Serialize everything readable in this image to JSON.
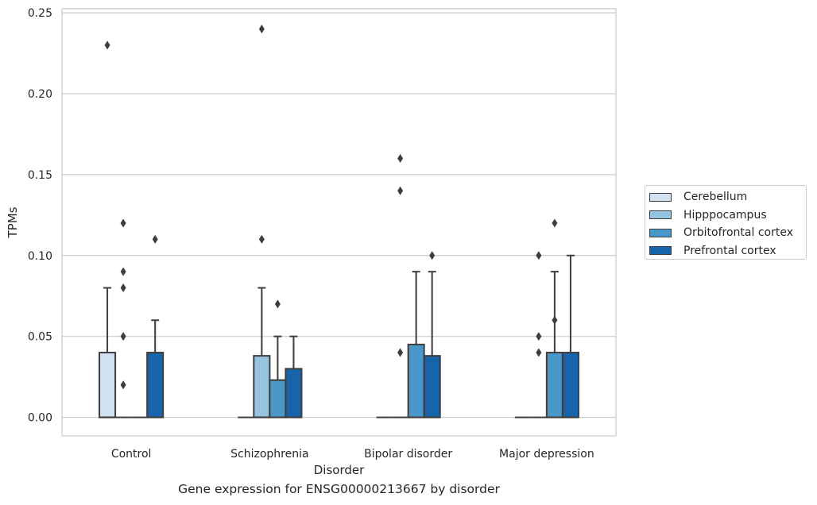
{
  "chart_data": {
    "type": "box",
    "xlabel": "Disorder",
    "ylabel": "TPMs",
    "caption": "Gene expression for ENSG00000213667 by disorder",
    "categories": [
      "Control",
      "Schizophrenia",
      "Bipolar disorder",
      "Major depression"
    ],
    "ylim": [
      -0.0115,
      0.2525
    ],
    "yticks": [
      0.0,
      0.05,
      0.1,
      0.15,
      0.2,
      0.25
    ],
    "ytick_labels": [
      "0.00",
      "0.05",
      "0.10",
      "0.15",
      "0.20",
      "0.25"
    ],
    "grid": "horizontal",
    "legend_placement": "right, outside",
    "series": [
      {
        "name": "Cerebellum",
        "color": "#d0e1f2",
        "boxes": [
          {
            "q1": 0.0,
            "median": 0.0,
            "q3": 0.04,
            "whisker_low": 0.0,
            "whisker_high": 0.08,
            "outliers": [
              0.23
            ]
          },
          {
            "q1": 0.0,
            "median": 0.0,
            "q3": 0.0,
            "whisker_low": 0.0,
            "whisker_high": 0.0,
            "outliers": []
          },
          {
            "q1": 0.0,
            "median": 0.0,
            "q3": 0.0,
            "whisker_low": 0.0,
            "whisker_high": 0.0,
            "outliers": []
          },
          {
            "q1": 0.0,
            "median": 0.0,
            "q3": 0.0,
            "whisker_low": 0.0,
            "whisker_high": 0.0,
            "outliers": []
          }
        ]
      },
      {
        "name": "Hipppocampus",
        "color": "#94c4df",
        "boxes": [
          {
            "q1": 0.0,
            "median": 0.0,
            "q3": 0.0,
            "whisker_low": 0.0,
            "whisker_high": 0.0,
            "outliers": [
              0.02,
              0.05,
              0.08,
              0.09,
              0.12
            ]
          },
          {
            "q1": 0.0,
            "median": 0.0,
            "q3": 0.038,
            "whisker_low": 0.0,
            "whisker_high": 0.08,
            "outliers": [
              0.11,
              0.24
            ]
          },
          {
            "q1": 0.0,
            "median": 0.0,
            "q3": 0.0,
            "whisker_low": 0.0,
            "whisker_high": 0.0,
            "outliers": [
              0.04,
              0.14,
              0.16
            ]
          },
          {
            "q1": 0.0,
            "median": 0.0,
            "q3": 0.0,
            "whisker_low": 0.0,
            "whisker_high": 0.0,
            "outliers": [
              0.04,
              0.05,
              0.1
            ]
          }
        ]
      },
      {
        "name": "Orbitofrontal cortex",
        "color": "#4a98c9",
        "boxes": [
          {
            "q1": 0.0,
            "median": 0.0,
            "q3": 0.0,
            "whisker_low": 0.0,
            "whisker_high": 0.0,
            "outliers": []
          },
          {
            "q1": 0.0,
            "median": 0.0,
            "q3": 0.023,
            "whisker_low": 0.0,
            "whisker_high": 0.05,
            "outliers": [
              0.07
            ]
          },
          {
            "q1": 0.0,
            "median": 0.0,
            "q3": 0.045,
            "whisker_low": 0.0,
            "whisker_high": 0.09,
            "outliers": []
          },
          {
            "q1": 0.0,
            "median": 0.0,
            "q3": 0.04,
            "whisker_low": 0.0,
            "whisker_high": 0.09,
            "outliers": [
              0.06,
              0.12
            ]
          }
        ]
      },
      {
        "name": "Prefrontal cortex",
        "color": "#1764ab",
        "boxes": [
          {
            "q1": 0.0,
            "median": 0.0,
            "q3": 0.04,
            "whisker_low": 0.0,
            "whisker_high": 0.06,
            "outliers": [
              0.11
            ]
          },
          {
            "q1": 0.0,
            "median": 0.0,
            "q3": 0.03,
            "whisker_low": 0.0,
            "whisker_high": 0.05,
            "outliers": []
          },
          {
            "q1": 0.0,
            "median": 0.0,
            "q3": 0.038,
            "whisker_low": 0.0,
            "whisker_high": 0.09,
            "outliers": [
              0.1
            ]
          },
          {
            "q1": 0.0,
            "median": 0.0,
            "q3": 0.04,
            "whisker_low": 0.0,
            "whisker_high": 0.1,
            "outliers": []
          }
        ]
      }
    ]
  },
  "colors": {
    "grid": "#cccccc",
    "frame": "#cccccc",
    "box_edge": "#3d3d3d",
    "text": "#262626"
  }
}
